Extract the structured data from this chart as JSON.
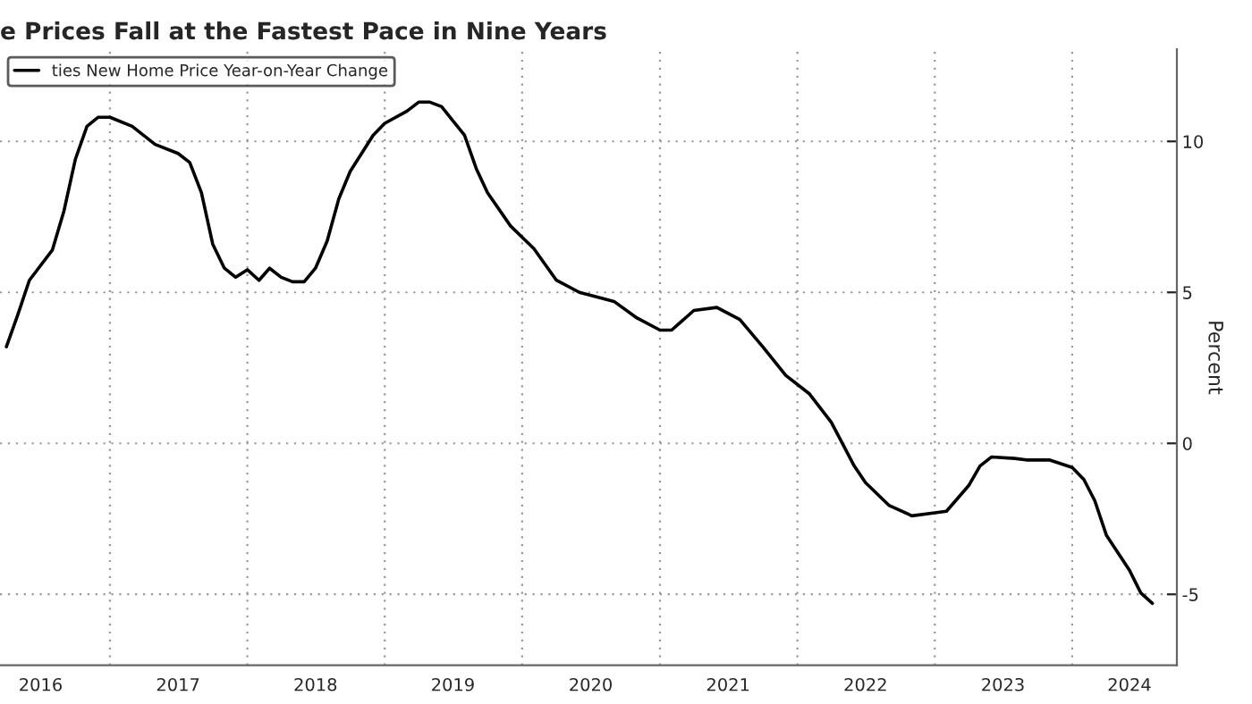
{
  "chart_data": {
    "type": "line",
    "title": "e Prices Fall at the Fastest Pace in Nine Years",
    "ylabel": "Percent",
    "x": [
      "2016-04",
      "2016-05",
      "2016-06",
      "2016-08",
      "2016-09",
      "2016-10",
      "2016-11",
      "2016-12",
      "2017-01",
      "2017-03",
      "2017-05",
      "2017-07",
      "2017-08",
      "2017-09",
      "2017-10",
      "2017-11",
      "2017-12",
      "2018-01",
      "2018-02",
      "2018-03",
      "2018-04",
      "2018-05",
      "2018-06",
      "2018-07",
      "2018-08",
      "2018-09",
      "2018-10",
      "2018-12",
      "2019-01",
      "2019-03",
      "2019-04",
      "2019-05",
      "2019-06",
      "2019-08",
      "2019-09",
      "2019-10",
      "2019-12",
      "2020-02",
      "2020-04",
      "2020-06",
      "2020-08",
      "2020-09",
      "2020-11",
      "2021-01",
      "2021-02",
      "2021-04",
      "2021-06",
      "2021-08",
      "2021-10",
      "2021-12",
      "2022-02",
      "2022-04",
      "2022-06",
      "2022-07",
      "2022-09",
      "2022-11",
      "2023-01",
      "2023-02",
      "2023-04",
      "2023-05",
      "2023-06",
      "2023-08",
      "2023-09",
      "2023-11",
      "2024-01",
      "2024-02",
      "2024-03",
      "2024-04",
      "2024-06",
      "2024-07",
      "2024-08"
    ],
    "series": [
      {
        "name": "ties New Home Price Year-on-Year Change",
        "color": "#000000",
        "values": [
          3.2,
          4.25,
          5.4,
          6.4,
          7.7,
          9.4,
          10.5,
          10.8,
          10.8,
          10.5,
          9.9,
          9.6,
          9.3,
          8.3,
          6.6,
          5.8,
          5.5,
          5.75,
          5.4,
          5.8,
          5.5,
          5.35,
          5.35,
          5.8,
          6.7,
          8.1,
          9.0,
          10.2,
          10.6,
          11.0,
          11.3,
          11.3,
          11.15,
          10.2,
          9.1,
          8.3,
          7.2,
          6.45,
          5.4,
          5.0,
          4.8,
          4.7,
          4.15,
          3.75,
          3.75,
          4.4,
          4.5,
          4.1,
          3.2,
          2.25,
          1.65,
          0.7,
          -0.75,
          -1.3,
          -2.05,
          -2.4,
          -2.3,
          -2.25,
          -1.4,
          -0.75,
          -0.45,
          -0.5,
          -0.55,
          -0.55,
          -0.8,
          -1.2,
          -1.9,
          -3.05,
          -4.2,
          -4.95,
          -5.3
        ]
      }
    ],
    "xlim": [
      "2016-03-15",
      "2024-10-05"
    ],
    "xticks": [
      {
        "value": "2016-07",
        "label": "2016"
      },
      {
        "value": "2017-01",
        "label": null
      },
      {
        "value": "2017-07",
        "label": "2017"
      },
      {
        "value": "2018-01",
        "label": null
      },
      {
        "value": "2018-07",
        "label": "2018"
      },
      {
        "value": "2019-01",
        "label": null
      },
      {
        "value": "2019-07",
        "label": "2019"
      },
      {
        "value": "2020-01",
        "label": null
      },
      {
        "value": "2020-07",
        "label": "2020"
      },
      {
        "value": "2021-01",
        "label": null
      },
      {
        "value": "2021-07",
        "label": "2021"
      },
      {
        "value": "2022-01",
        "label": null
      },
      {
        "value": "2022-07",
        "label": "2022"
      },
      {
        "value": "2023-01",
        "label": null
      },
      {
        "value": "2023-07",
        "label": "2023"
      },
      {
        "value": "2024-01",
        "label": null
      },
      {
        "value": "2024-06",
        "label": "2024"
      }
    ],
    "ylim": [
      -7.35,
      13.05
    ],
    "yticks": [
      -5,
      0,
      5,
      10
    ],
    "grid": true,
    "legend": "top left",
    "line_style": "solid",
    "marker": "none"
  }
}
